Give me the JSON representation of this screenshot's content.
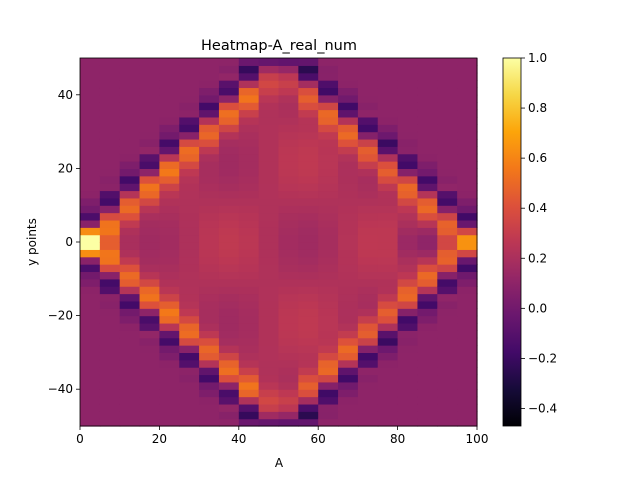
{
  "chart_data": {
    "type": "heatmap",
    "title": "Heatmap-A_real_num",
    "xlabel": "A",
    "ylabel": "y points",
    "xlim": [
      0,
      100
    ],
    "ylim": [
      -50,
      50
    ],
    "x_ticks": [
      0,
      20,
      40,
      60,
      80,
      100
    ],
    "y_ticks": [
      -40,
      -20,
      0,
      20,
      40
    ],
    "colormap": "inferno",
    "colorbar": {
      "vmin": -0.47,
      "vmax": 1.0,
      "ticks": [
        -0.4,
        -0.2,
        0.0,
        0.2,
        0.4,
        0.6,
        0.8,
        1.0
      ],
      "tick_labels": [
        "−0.4",
        "−0.2",
        "0.0",
        "0.2",
        "0.4",
        "0.6",
        "0.8",
        "1.0"
      ]
    },
    "grid": false,
    "description_of_values": "Diamond-shaped wavefront: bright positive band along |y| ≈ 50·(1 − |x−50|/50) with a dark negative trailing band just outside; source peak ≈ 1.0 at (0–5, 0); second peak ≈ 0.55 at (95–100, 0); minima ≈ −0.47 near (45–55, ±45).",
    "grid_size": {
      "nx": 20,
      "ny": 50,
      "dx": 5,
      "dy": 2
    }
  }
}
